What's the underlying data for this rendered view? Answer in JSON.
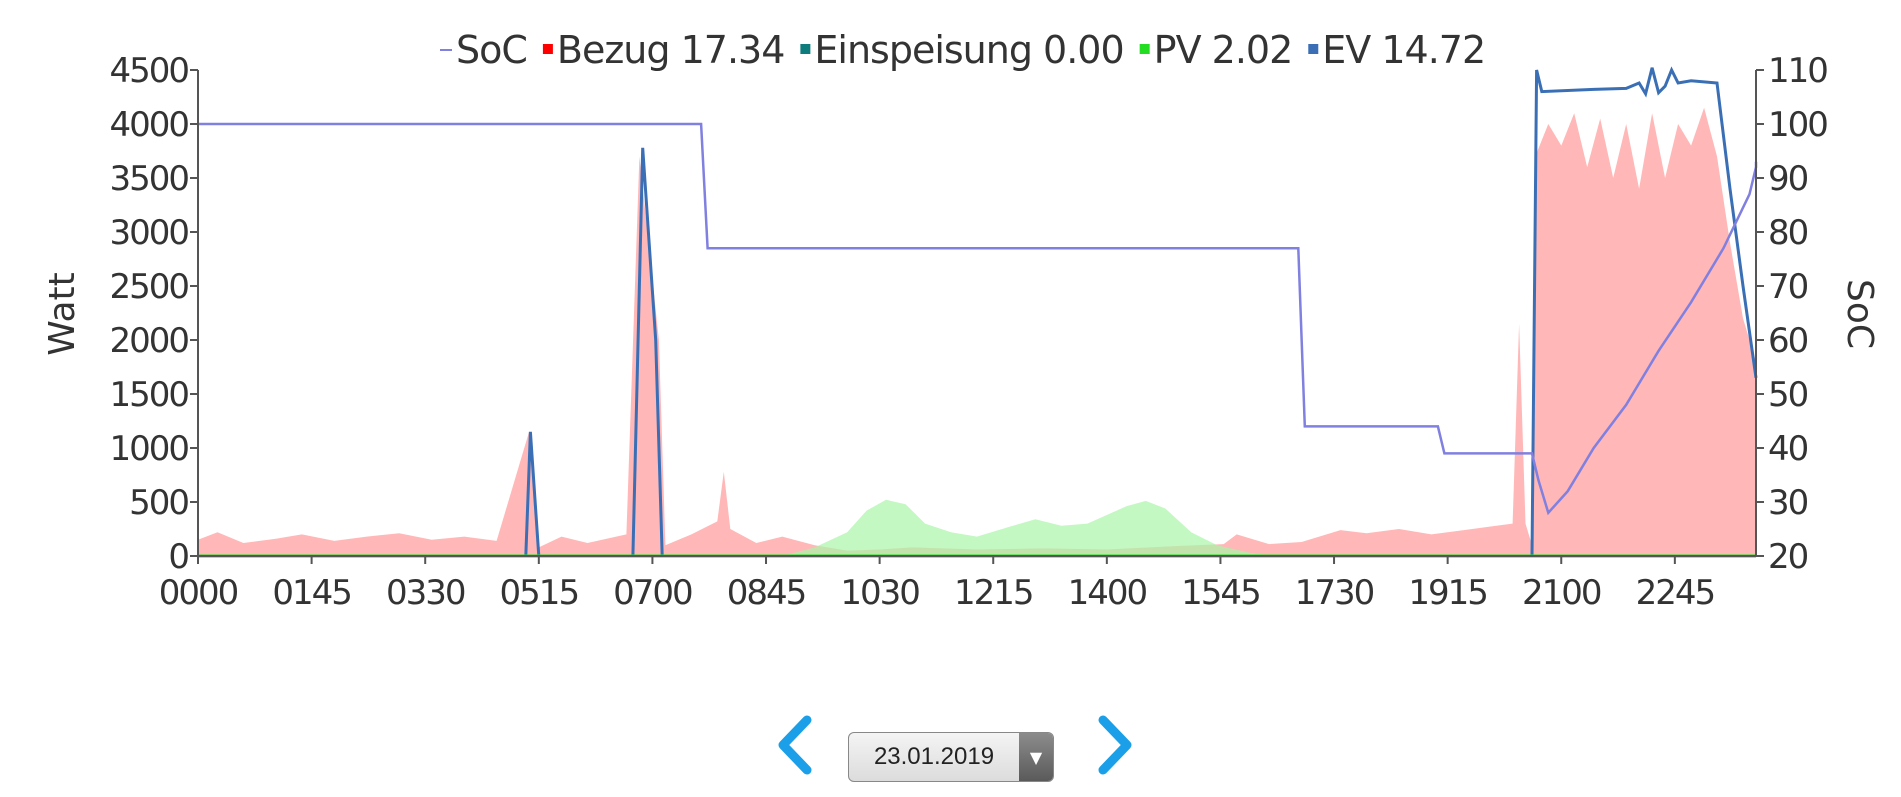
{
  "chart_data": {
    "type": "area",
    "legend": [
      {
        "marker": "-",
        "label": "SoC",
        "color": "#8080e0"
      },
      {
        "marker": "■",
        "label": "Bezug 17.34",
        "color": "#ff0000"
      },
      {
        "marker": "■",
        "label": "Einspeisung 0.00",
        "color": "#0e7c7c"
      },
      {
        "marker": "■",
        "label": "PV 2.02",
        "color": "#22dd22"
      },
      {
        "marker": "■",
        "label": "EV 14.72",
        "color": "#3a6fb5"
      }
    ],
    "ylabel": "Watt",
    "y2label": "SoC",
    "ylim": [
      0,
      4500
    ],
    "y2lim": [
      20,
      110
    ],
    "yticks": [
      "0",
      "500",
      "1000",
      "1500",
      "2000",
      "2500",
      "3000",
      "3500",
      "4000",
      "4500"
    ],
    "y2ticks": [
      "20",
      "30",
      "40",
      "50",
      "60",
      "70",
      "80",
      "90",
      "100",
      "110"
    ],
    "xticks": [
      "00:00",
      "01:45",
      "03:30",
      "05:15",
      "07:00",
      "08:45",
      "10:30",
      "12:15",
      "14:00",
      "15:45",
      "17:30",
      "19:15",
      "21:00",
      "22:45"
    ],
    "xlim_hours": [
      0,
      24
    ],
    "series": [
      {
        "name": "SoC",
        "axis": "right",
        "color": "#8080e0",
        "points": [
          [
            0,
            100
          ],
          [
            7.75,
            100
          ],
          [
            7.85,
            77
          ],
          [
            16.95,
            77
          ],
          [
            17.05,
            44
          ],
          [
            19.1,
            44
          ],
          [
            19.2,
            39
          ],
          [
            20.55,
            39
          ],
          [
            20.65,
            34
          ],
          [
            20.8,
            28
          ],
          [
            21.1,
            32
          ],
          [
            21.5,
            40
          ],
          [
            22,
            48
          ],
          [
            22.5,
            58
          ],
          [
            23,
            67
          ],
          [
            23.5,
            77
          ],
          [
            23.9,
            87
          ],
          [
            24.3,
            92
          ],
          [
            24.5,
            93
          ]
        ]
      },
      {
        "name": "Bezug 17.34",
        "axis": "left",
        "color": "#ff9999",
        "points": [
          [
            0,
            150
          ],
          [
            0.3,
            220
          ],
          [
            0.7,
            120
          ],
          [
            1.2,
            160
          ],
          [
            1.6,
            200
          ],
          [
            2.1,
            140
          ],
          [
            2.6,
            180
          ],
          [
            3.1,
            210
          ],
          [
            3.6,
            150
          ],
          [
            4.1,
            180
          ],
          [
            4.6,
            140
          ],
          [
            5.1,
            1150
          ],
          [
            5.25,
            80
          ],
          [
            5.6,
            180
          ],
          [
            6,
            120
          ],
          [
            6.6,
            200
          ],
          [
            6.8,
            3700
          ],
          [
            7.1,
            2000
          ],
          [
            7.2,
            100
          ],
          [
            7.6,
            200
          ],
          [
            8,
            320
          ],
          [
            8.1,
            780
          ],
          [
            8.2,
            250
          ],
          [
            8.6,
            120
          ],
          [
            9,
            180
          ],
          [
            9.5,
            100
          ],
          [
            10,
            50
          ],
          [
            10.5,
            60
          ],
          [
            11,
            80
          ],
          [
            12,
            60
          ],
          [
            13,
            70
          ],
          [
            14,
            60
          ],
          [
            15,
            90
          ],
          [
            15.8,
            110
          ],
          [
            16,
            200
          ],
          [
            16.5,
            110
          ],
          [
            17,
            130
          ],
          [
            17.6,
            240
          ],
          [
            18,
            210
          ],
          [
            18.5,
            250
          ],
          [
            19,
            200
          ],
          [
            19.5,
            240
          ],
          [
            20,
            280
          ],
          [
            20.25,
            300
          ],
          [
            20.35,
            2150
          ],
          [
            20.45,
            300
          ],
          [
            20.55,
            100
          ],
          [
            20.6,
            3700
          ],
          [
            20.8,
            4000
          ],
          [
            21,
            3800
          ],
          [
            21.2,
            4100
          ],
          [
            21.4,
            3600
          ],
          [
            21.6,
            4050
          ],
          [
            21.8,
            3500
          ],
          [
            22,
            4000
          ],
          [
            22.2,
            3400
          ],
          [
            22.4,
            4100
          ],
          [
            22.6,
            3500
          ],
          [
            22.8,
            4000
          ],
          [
            23,
            3800
          ],
          [
            23.2,
            4150
          ],
          [
            23.4,
            3700
          ],
          [
            23.6,
            2900
          ],
          [
            23.8,
            2200
          ],
          [
            24,
            1800
          ],
          [
            24.1,
            0
          ]
        ]
      },
      {
        "name": "PV 2.02",
        "axis": "left",
        "color": "#aaf5a8",
        "points": [
          [
            9,
            0
          ],
          [
            9.5,
            80
          ],
          [
            10,
            220
          ],
          [
            10.3,
            420
          ],
          [
            10.6,
            520
          ],
          [
            10.9,
            480
          ],
          [
            11.2,
            300
          ],
          [
            11.6,
            220
          ],
          [
            12,
            180
          ],
          [
            12.5,
            270
          ],
          [
            12.9,
            340
          ],
          [
            13.3,
            280
          ],
          [
            13.7,
            300
          ],
          [
            14,
            380
          ],
          [
            14.3,
            460
          ],
          [
            14.6,
            510
          ],
          [
            14.9,
            440
          ],
          [
            15.3,
            220
          ],
          [
            15.7,
            100
          ],
          [
            16.2,
            30
          ],
          [
            16.6,
            0
          ]
        ]
      },
      {
        "name": "EV 14.72",
        "axis": "left",
        "color": "#3a6fb5",
        "points": [
          [
            0,
            0
          ],
          [
            5.05,
            0
          ],
          [
            5.12,
            1150
          ],
          [
            5.25,
            0
          ],
          [
            6.7,
            0
          ],
          [
            6.85,
            3780
          ],
          [
            7.05,
            2000
          ],
          [
            7.15,
            0
          ],
          [
            20.55,
            0
          ],
          [
            20.62,
            4500
          ],
          [
            20.7,
            4300
          ],
          [
            21.5,
            4320
          ],
          [
            22,
            4330
          ],
          [
            22.2,
            4380
          ],
          [
            22.3,
            4280
          ],
          [
            22.4,
            4520
          ],
          [
            22.5,
            4290
          ],
          [
            22.6,
            4350
          ],
          [
            22.7,
            4500
          ],
          [
            22.8,
            4380
          ],
          [
            23,
            4400
          ],
          [
            23.4,
            4380
          ],
          [
            23.6,
            3400
          ],
          [
            23.8,
            2500
          ],
          [
            24.1,
            1650
          ]
        ]
      },
      {
        "name": "Einspeisung 0.00",
        "axis": "left",
        "color": "#0e7c7c",
        "points": [
          [
            0,
            0
          ],
          [
            24.5,
            0
          ]
        ]
      }
    ]
  },
  "controls": {
    "prev_icon": "chevron-left-icon",
    "next_icon": "chevron-right-icon",
    "date_value": "23.01.2019",
    "accent_color": "#1a9fe8"
  }
}
